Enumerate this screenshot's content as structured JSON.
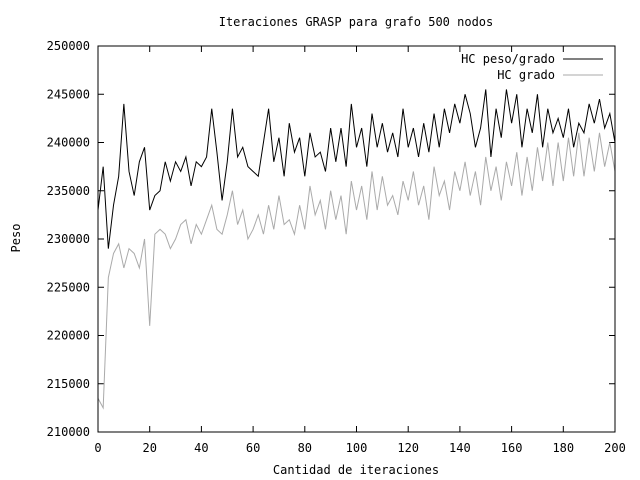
{
  "chart_data": {
    "type": "line",
    "title": "Iteraciones GRASP para grafo 500 nodos",
    "xlabel": "Cantidad de iteraciones",
    "ylabel": "Peso",
    "xlim": [
      0,
      200
    ],
    "ylim": [
      210000,
      250000
    ],
    "xticks": [
      0,
      20,
      40,
      60,
      80,
      100,
      120,
      140,
      160,
      180,
      200
    ],
    "yticks": [
      210000,
      215000,
      220000,
      225000,
      230000,
      235000,
      240000,
      245000,
      250000
    ],
    "grid": false,
    "legend_position": "top-right",
    "series": [
      {
        "name": "HC peso/grado",
        "color": "#000000",
        "x": [
          0,
          2,
          4,
          6,
          8,
          10,
          12,
          14,
          16,
          18,
          20,
          22,
          24,
          26,
          28,
          30,
          32,
          34,
          36,
          38,
          40,
          42,
          44,
          46,
          48,
          50,
          52,
          54,
          56,
          58,
          60,
          62,
          64,
          66,
          68,
          70,
          72,
          74,
          76,
          78,
          80,
          82,
          84,
          86,
          88,
          90,
          92,
          94,
          96,
          98,
          100,
          102,
          104,
          106,
          108,
          110,
          112,
          114,
          116,
          118,
          120,
          122,
          124,
          126,
          128,
          130,
          132,
          134,
          136,
          138,
          140,
          142,
          144,
          146,
          148,
          150,
          152,
          154,
          156,
          158,
          160,
          162,
          164,
          166,
          168,
          170,
          172,
          174,
          176,
          178,
          180,
          182,
          184,
          186,
          188,
          190,
          192,
          194,
          196,
          198,
          200
        ],
        "values": [
          233000,
          237500,
          229000,
          233500,
          236500,
          244000,
          237000,
          234500,
          238000,
          239500,
          233000,
          234500,
          235000,
          238000,
          236000,
          238000,
          237000,
          238500,
          235500,
          238000,
          237500,
          238500,
          243500,
          239000,
          234000,
          238000,
          243500,
          238500,
          239500,
          237500,
          237000,
          236500,
          240000,
          243500,
          238000,
          240500,
          236500,
          242000,
          239000,
          240500,
          236500,
          241000,
          238500,
          239000,
          237000,
          241500,
          238000,
          241500,
          237500,
          244000,
          239500,
          241500,
          237500,
          243000,
          239500,
          242000,
          239000,
          241000,
          238500,
          243500,
          239500,
          241500,
          238500,
          242000,
          239000,
          243000,
          239500,
          243500,
          241000,
          244000,
          242000,
          245000,
          243000,
          239500,
          241500,
          245500,
          238500,
          243500,
          240500,
          245500,
          242000,
          245000,
          239500,
          243500,
          241000,
          245000,
          239500,
          243500,
          241000,
          242500,
          240500,
          243500,
          239500,
          242000,
          241000,
          244000,
          242000,
          244500,
          241500,
          243000,
          240000
        ]
      },
      {
        "name": "HC grado",
        "color": "#aaaaaa",
        "x": [
          0,
          2,
          4,
          6,
          8,
          10,
          12,
          14,
          16,
          18,
          20,
          22,
          24,
          26,
          28,
          30,
          32,
          34,
          36,
          38,
          40,
          42,
          44,
          46,
          48,
          50,
          52,
          54,
          56,
          58,
          60,
          62,
          64,
          66,
          68,
          70,
          72,
          74,
          76,
          78,
          80,
          82,
          84,
          86,
          88,
          90,
          92,
          94,
          96,
          98,
          100,
          102,
          104,
          106,
          108,
          110,
          112,
          114,
          116,
          118,
          120,
          122,
          124,
          126,
          128,
          130,
          132,
          134,
          136,
          138,
          140,
          142,
          144,
          146,
          148,
          150,
          152,
          154,
          156,
          158,
          160,
          162,
          164,
          166,
          168,
          170,
          172,
          174,
          176,
          178,
          180,
          182,
          184,
          186,
          188,
          190,
          192,
          194,
          196,
          198,
          200
        ],
        "values": [
          213500,
          212500,
          226000,
          228500,
          229500,
          227000,
          229000,
          228500,
          227000,
          230000,
          221000,
          230500,
          231000,
          230500,
          229000,
          230000,
          231500,
          232000,
          229500,
          231500,
          230500,
          232000,
          233500,
          231000,
          230500,
          232500,
          235000,
          231500,
          233000,
          230000,
          231000,
          232500,
          230500,
          233500,
          231000,
          234500,
          231500,
          232000,
          230500,
          233500,
          231000,
          235500,
          232500,
          234000,
          231000,
          235000,
          232000,
          234500,
          230500,
          236000,
          233000,
          235500,
          232000,
          237000,
          233000,
          236500,
          233500,
          234500,
          232500,
          236000,
          234000,
          237000,
          233500,
          235500,
          232000,
          237500,
          234500,
          236000,
          233000,
          237000,
          235000,
          238000,
          234500,
          237000,
          233500,
          238500,
          235000,
          237500,
          234000,
          238000,
          235500,
          239000,
          234500,
          238500,
          235000,
          239500,
          236000,
          240000,
          235500,
          240000,
          236000,
          240500,
          236500,
          241000,
          236500,
          240500,
          237000,
          241000,
          237500,
          240000,
          237000
        ]
      }
    ]
  }
}
